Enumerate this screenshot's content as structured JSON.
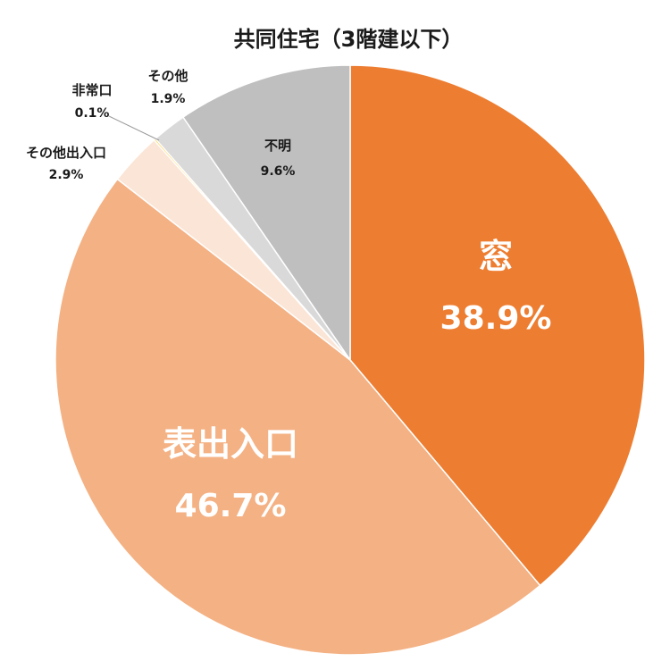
{
  "chart_data": {
    "type": "pie",
    "title": "共同住宅（3階建以下）",
    "start_angle_deg": 0,
    "direction": "clockwise",
    "slices": [
      {
        "label": "窓",
        "value": 38.9,
        "value_text": "38.9%",
        "color": "#ED7D31",
        "label_style": "big"
      },
      {
        "label": "表出入口",
        "value": 46.7,
        "value_text": "46.7%",
        "color": "#F4B183",
        "label_style": "big"
      },
      {
        "label": "その他出入口",
        "value": 2.9,
        "value_text": "2.9%",
        "color": "#FBE5D6",
        "label_style": "outside"
      },
      {
        "label": "非常口",
        "value": 0.1,
        "value_text": "0.1%",
        "color": "#FFC000",
        "label_style": "outside"
      },
      {
        "label": "その他",
        "value": 1.9,
        "value_text": "1.9%",
        "color": "#D9D9D9",
        "label_style": "outside"
      },
      {
        "label": "不明",
        "value": 9.6,
        "value_text": "9.6%",
        "color": "#BFBFBF",
        "label_style": "inside"
      }
    ]
  }
}
